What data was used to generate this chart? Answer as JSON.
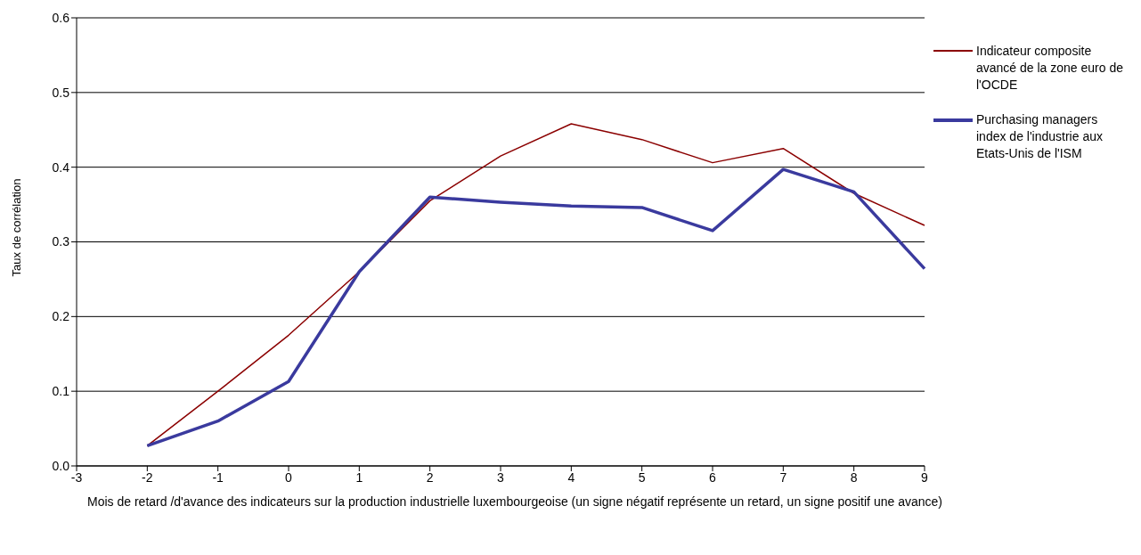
{
  "chart_data": {
    "type": "line",
    "xlabel": "Mois de retard /d'avance des indicateurs sur la production industrielle luxembourgeoise (un signe négatif représente un retard, un signe positif une avance)",
    "ylabel": "Taux de corrélation",
    "categories": [
      "-3",
      "-2",
      "-1",
      "0",
      "1",
      "2",
      "3",
      "4",
      "5",
      "6",
      "7",
      "8",
      "9"
    ],
    "series": [
      {
        "name": "Indicateur composite avancé de la zone euro de l'OCDE",
        "color": "#8b0000",
        "values": [
          null,
          0.027,
          0.1,
          0.175,
          0.26,
          0.355,
          0.415,
          0.458,
          0.437,
          0.406,
          0.425,
          0.365,
          0.322
        ]
      },
      {
        "name": "Purchasing managers index de l'industrie aux Etats-Unis de l'ISM",
        "color": "#3a3a9e",
        "values": [
          null,
          0.027,
          0.06,
          0.113,
          0.26,
          0.36,
          0.353,
          0.348,
          0.346,
          0.315,
          0.397,
          0.367,
          0.264
        ]
      }
    ],
    "ylim": [
      0,
      0.6
    ],
    "yticks": [
      {
        "value": 0,
        "label": "0.0"
      },
      0.1,
      0.2,
      0.3,
      0.4,
      0.5,
      0.6
    ],
    "grid": "y",
    "legend": "right",
    "marker": "none",
    "line_style": "solid"
  }
}
